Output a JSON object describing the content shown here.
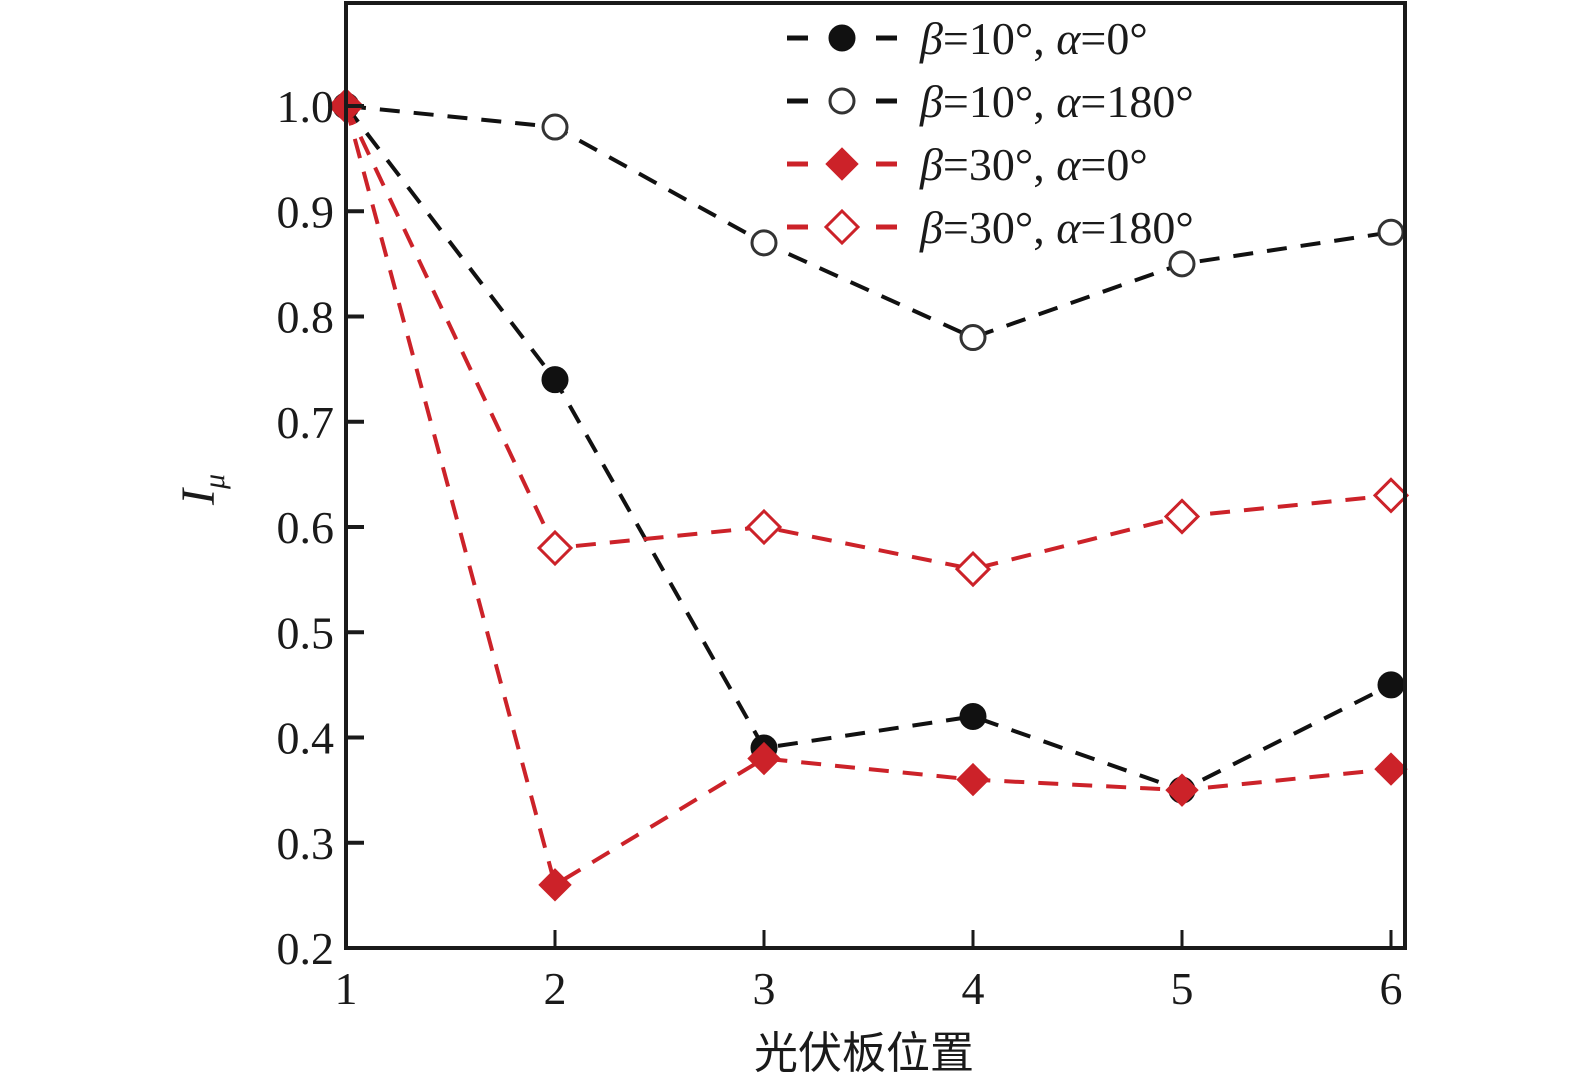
{
  "chart_data": {
    "type": "line",
    "title": "",
    "xlabel": "光伏板位置",
    "ylabel_main": "I",
    "ylabel_sub": "μ",
    "x": [
      1,
      2,
      3,
      4,
      5,
      6
    ],
    "xlim": [
      1,
      6.07
    ],
    "ylim": [
      0.2,
      1.1
    ],
    "xticks": [
      "1",
      "2",
      "3",
      "4",
      "5",
      "6"
    ],
    "yticks": [
      {
        "value": 0.2,
        "label": "0.2"
      },
      {
        "value": 0.3,
        "label": "0.3"
      },
      {
        "value": 0.4,
        "label": "0.4"
      },
      {
        "value": 0.5,
        "label": "0.5"
      },
      {
        "value": 0.6,
        "label": "0.6"
      },
      {
        "value": 0.7,
        "label": "0.7"
      },
      {
        "value": 0.8,
        "label": "0.8"
      },
      {
        "value": 0.9,
        "label": "0.9"
      },
      {
        "value": 1.0,
        "label": "1.0"
      }
    ],
    "grid": false,
    "legend_position": "top-right",
    "series": [
      {
        "name": "β=10°, α=0°",
        "beta": "β",
        "beta_val": "=10°, ",
        "alpha": "α",
        "alpha_val": "=0°",
        "color": "#111111",
        "marker": "circle-filled",
        "values": [
          1.0,
          0.74,
          0.39,
          0.42,
          0.35,
          0.45
        ]
      },
      {
        "name": "β=10°, α=180°",
        "beta": "β",
        "beta_val": "=10°, ",
        "alpha": "α",
        "alpha_val": "=180°",
        "color": "#111111",
        "marker": "circle-open",
        "values": [
          1.0,
          0.98,
          0.87,
          0.78,
          0.85,
          0.88
        ]
      },
      {
        "name": "β=30°, α=0°",
        "beta": "β",
        "beta_val": "=30°, ",
        "alpha": "α",
        "alpha_val": "=0°",
        "color": "#cc2229",
        "marker": "diamond-filled",
        "values": [
          1.0,
          0.26,
          0.38,
          0.36,
          0.35,
          0.37
        ]
      },
      {
        "name": "β=30°, α=180°",
        "beta": "β",
        "beta_val": "=30°, ",
        "alpha": "α",
        "alpha_val": "=180°",
        "color": "#cc2229",
        "marker": "diamond-open",
        "values": [
          1.0,
          0.58,
          0.6,
          0.56,
          0.61,
          0.63
        ]
      }
    ]
  }
}
